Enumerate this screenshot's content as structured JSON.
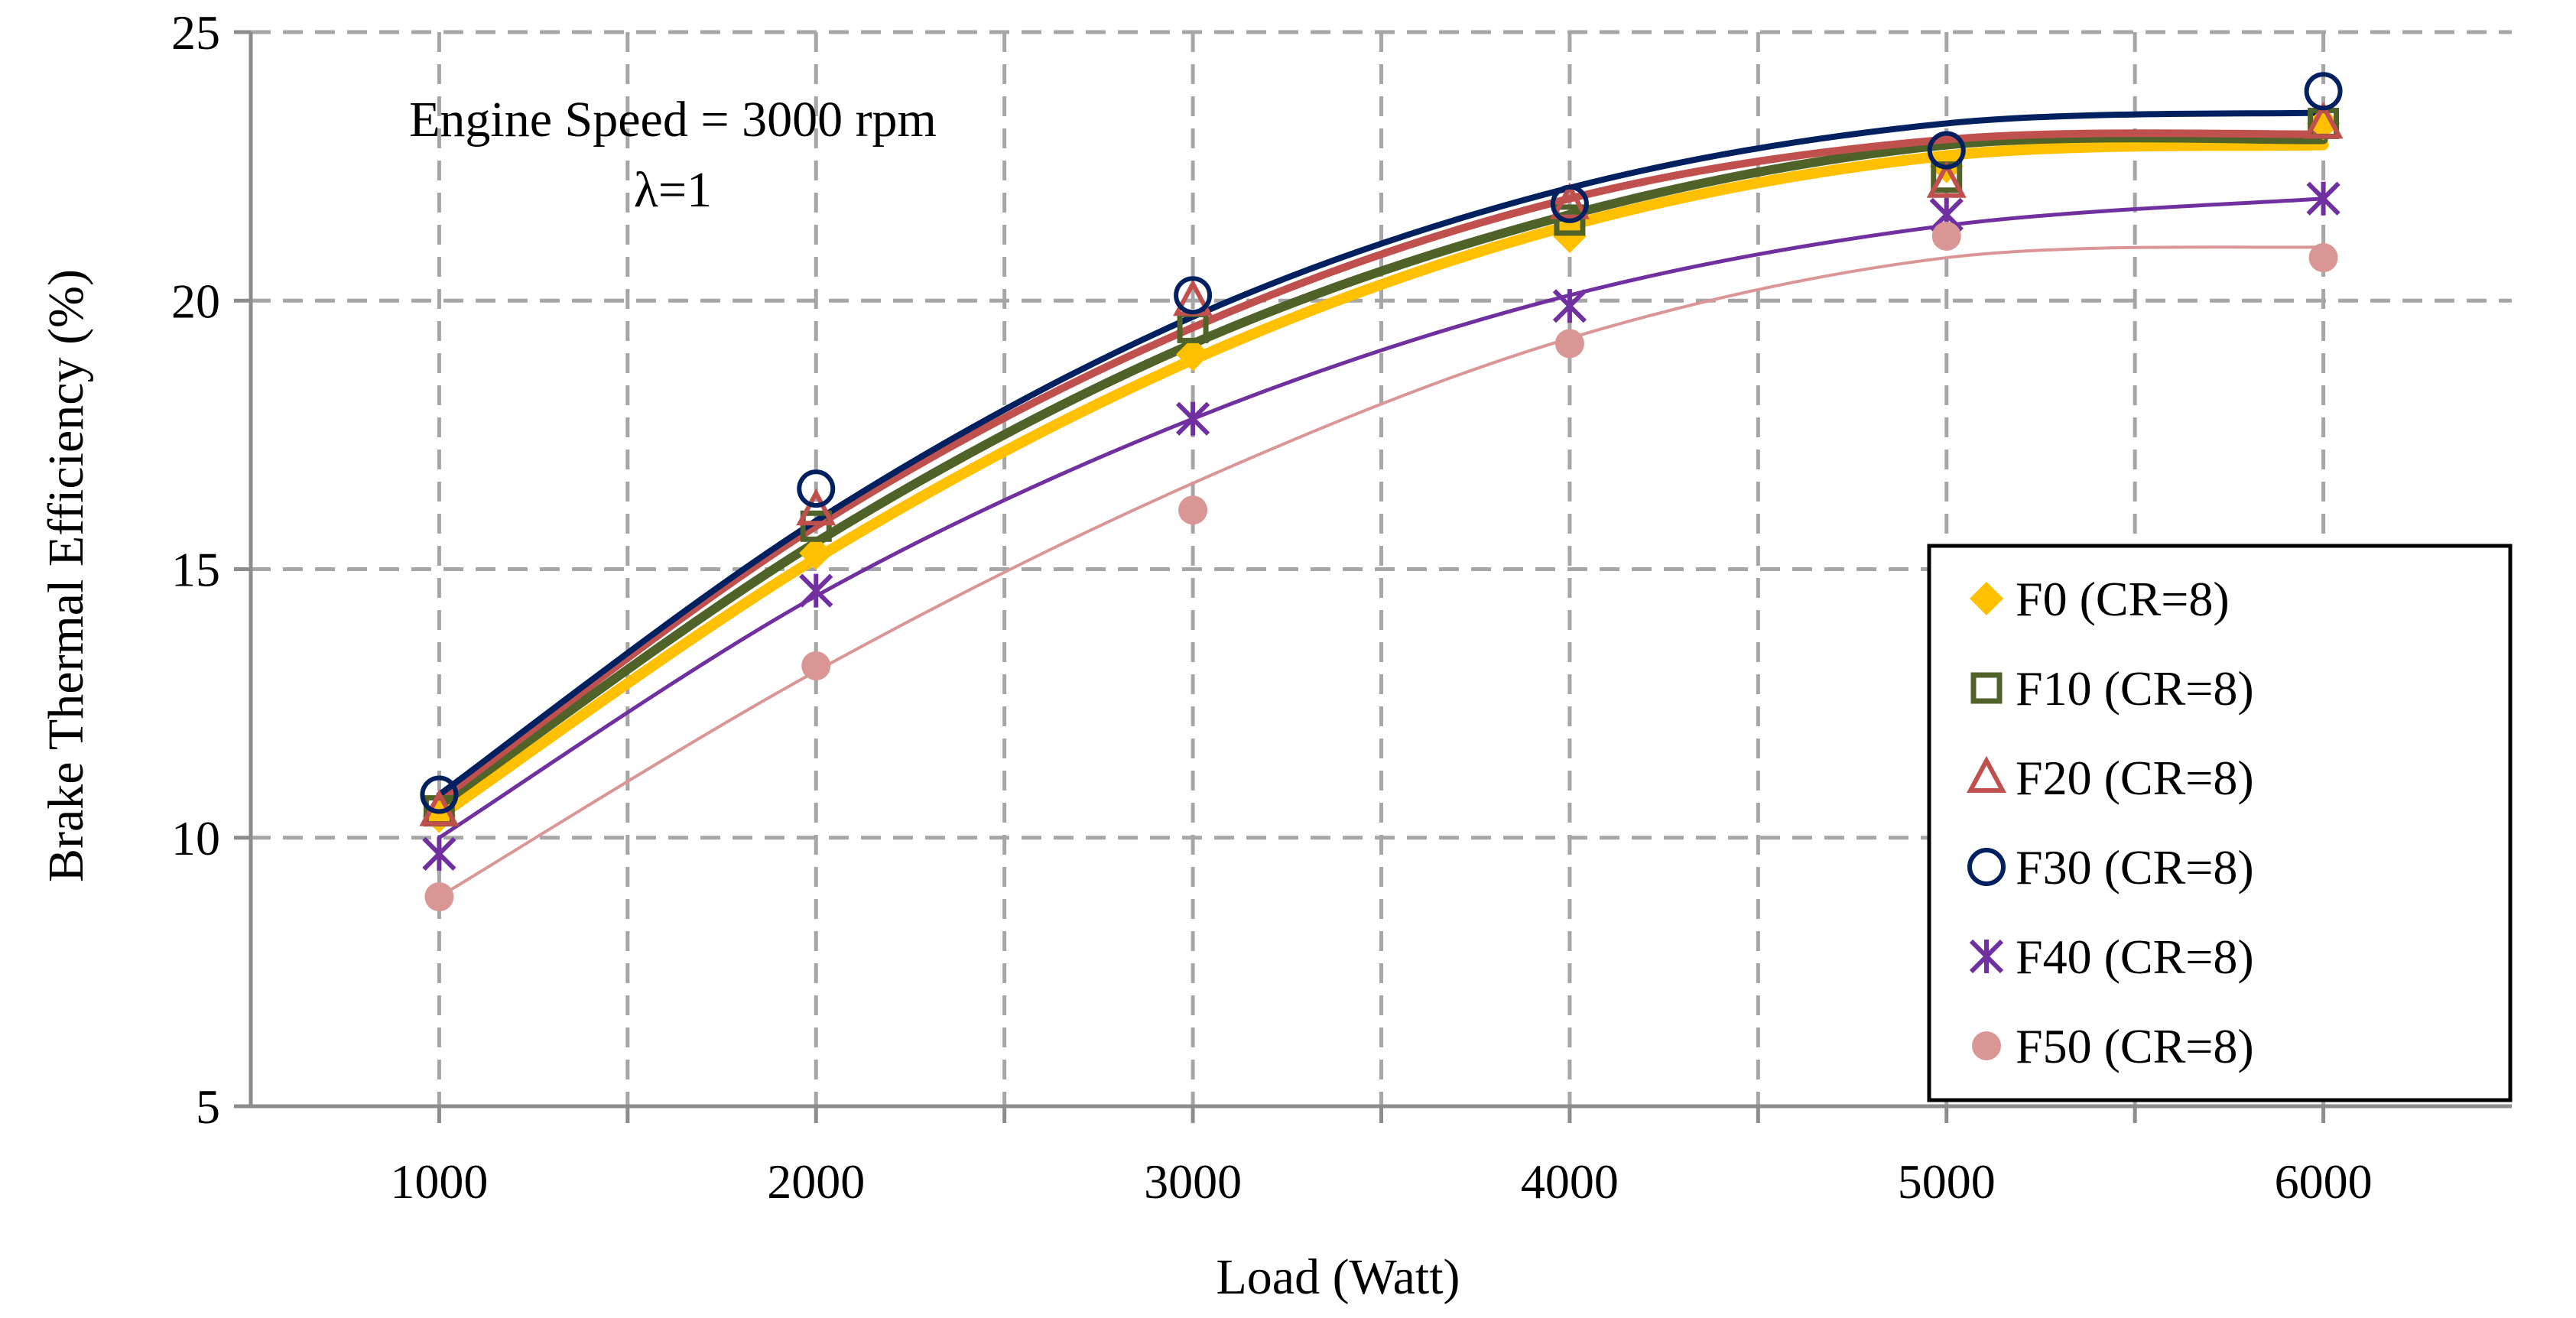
{
  "chart_data": {
    "type": "scatter",
    "title": "",
    "xlabel": "Load (Watt)",
    "ylabel": "Brake Thermal Efficiency (%)",
    "xlim": [
      500,
      6500
    ],
    "ylim": [
      5,
      25
    ],
    "xticks": [
      1000,
      2000,
      3000,
      4000,
      5000,
      6000
    ],
    "yticks": [
      5,
      10,
      15,
      20,
      25
    ],
    "x_grid_every": 500,
    "grid": true,
    "legend_position": "bottom-right",
    "annotations": [
      "Engine Speed = 3000 rpm",
      "λ=1"
    ],
    "x": [
      1000,
      2000,
      3000,
      4000,
      5000,
      6000
    ],
    "series": [
      {
        "name": "F0 (CR=8)",
        "marker": "diamond",
        "color": "#ffc000",
        "fit_width": 14,
        "values": [
          10.4,
          15.3,
          19.0,
          21.2,
          22.5,
          23.3
        ],
        "fit": [
          10.4,
          15.2,
          18.9,
          21.4,
          22.7,
          22.9
        ]
      },
      {
        "name": "F10 (CR=8)",
        "marker": "square",
        "color": "#4f6228",
        "fit_width": 12,
        "values": [
          10.5,
          15.8,
          19.5,
          21.5,
          22.3,
          23.3
        ],
        "fit": [
          10.6,
          15.5,
          19.2,
          21.6,
          22.9,
          23.0
        ]
      },
      {
        "name": "F20 (CR=8)",
        "marker": "triangle",
        "color": "#c0504d",
        "fit_width": 10,
        "values": [
          10.5,
          16.1,
          20.0,
          21.8,
          22.2,
          23.3
        ],
        "fit": [
          10.7,
          15.8,
          19.5,
          21.9,
          23.0,
          23.1
        ]
      },
      {
        "name": "F30 (CR=8)",
        "marker": "circle",
        "color": "#002060",
        "fit_width": 8,
        "values": [
          10.8,
          16.5,
          20.1,
          21.8,
          22.8,
          23.9
        ],
        "fit": [
          10.8,
          15.9,
          19.7,
          22.1,
          23.3,
          23.5
        ]
      },
      {
        "name": "F40 (CR=8)",
        "marker": "star",
        "color": "#7030a0",
        "fit_width": 5,
        "values": [
          9.7,
          14.6,
          17.8,
          19.9,
          21.6,
          21.9
        ],
        "fit": [
          10.0,
          14.5,
          17.8,
          20.1,
          21.4,
          21.9
        ]
      },
      {
        "name": "F50 (CR=8)",
        "marker": "dot",
        "color": "#d99694",
        "fit_width": 4,
        "values": [
          8.9,
          13.2,
          16.1,
          19.2,
          21.2,
          20.8
        ],
        "fit": [
          8.9,
          13.1,
          16.6,
          19.3,
          20.8,
          21.0
        ]
      }
    ]
  }
}
